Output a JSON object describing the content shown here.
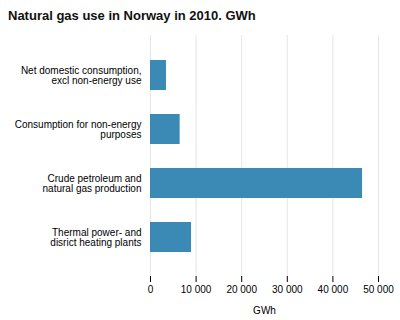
{
  "chart_data": {
    "type": "bar",
    "orientation": "horizontal",
    "title": "Natural gas use in Norway in 2010. GWh",
    "categories": [
      "Thermal power- and\ndisrict heating plants",
      "Crude petroleum and\nnatural gas production",
      "Consumption for non-energy\npurposes",
      "Net domestic consumption,\nexcl non-energy use"
    ],
    "values": [
      9000,
      46500,
      6500,
      3500
    ],
    "color": "#3a8ab5",
    "xlabel": "GWh",
    "xlim": [
      0,
      50000
    ],
    "xticks": [
      0,
      {
        "value": 10000,
        "label": "10 000"
      },
      {
        "value": 20000,
        "label": "20 000"
      },
      {
        "value": 30000,
        "label": "30 000"
      },
      {
        "value": 40000,
        "label": "40 000"
      },
      {
        "value": 50000,
        "label": "50 000"
      }
    ],
    "grid": true
  }
}
